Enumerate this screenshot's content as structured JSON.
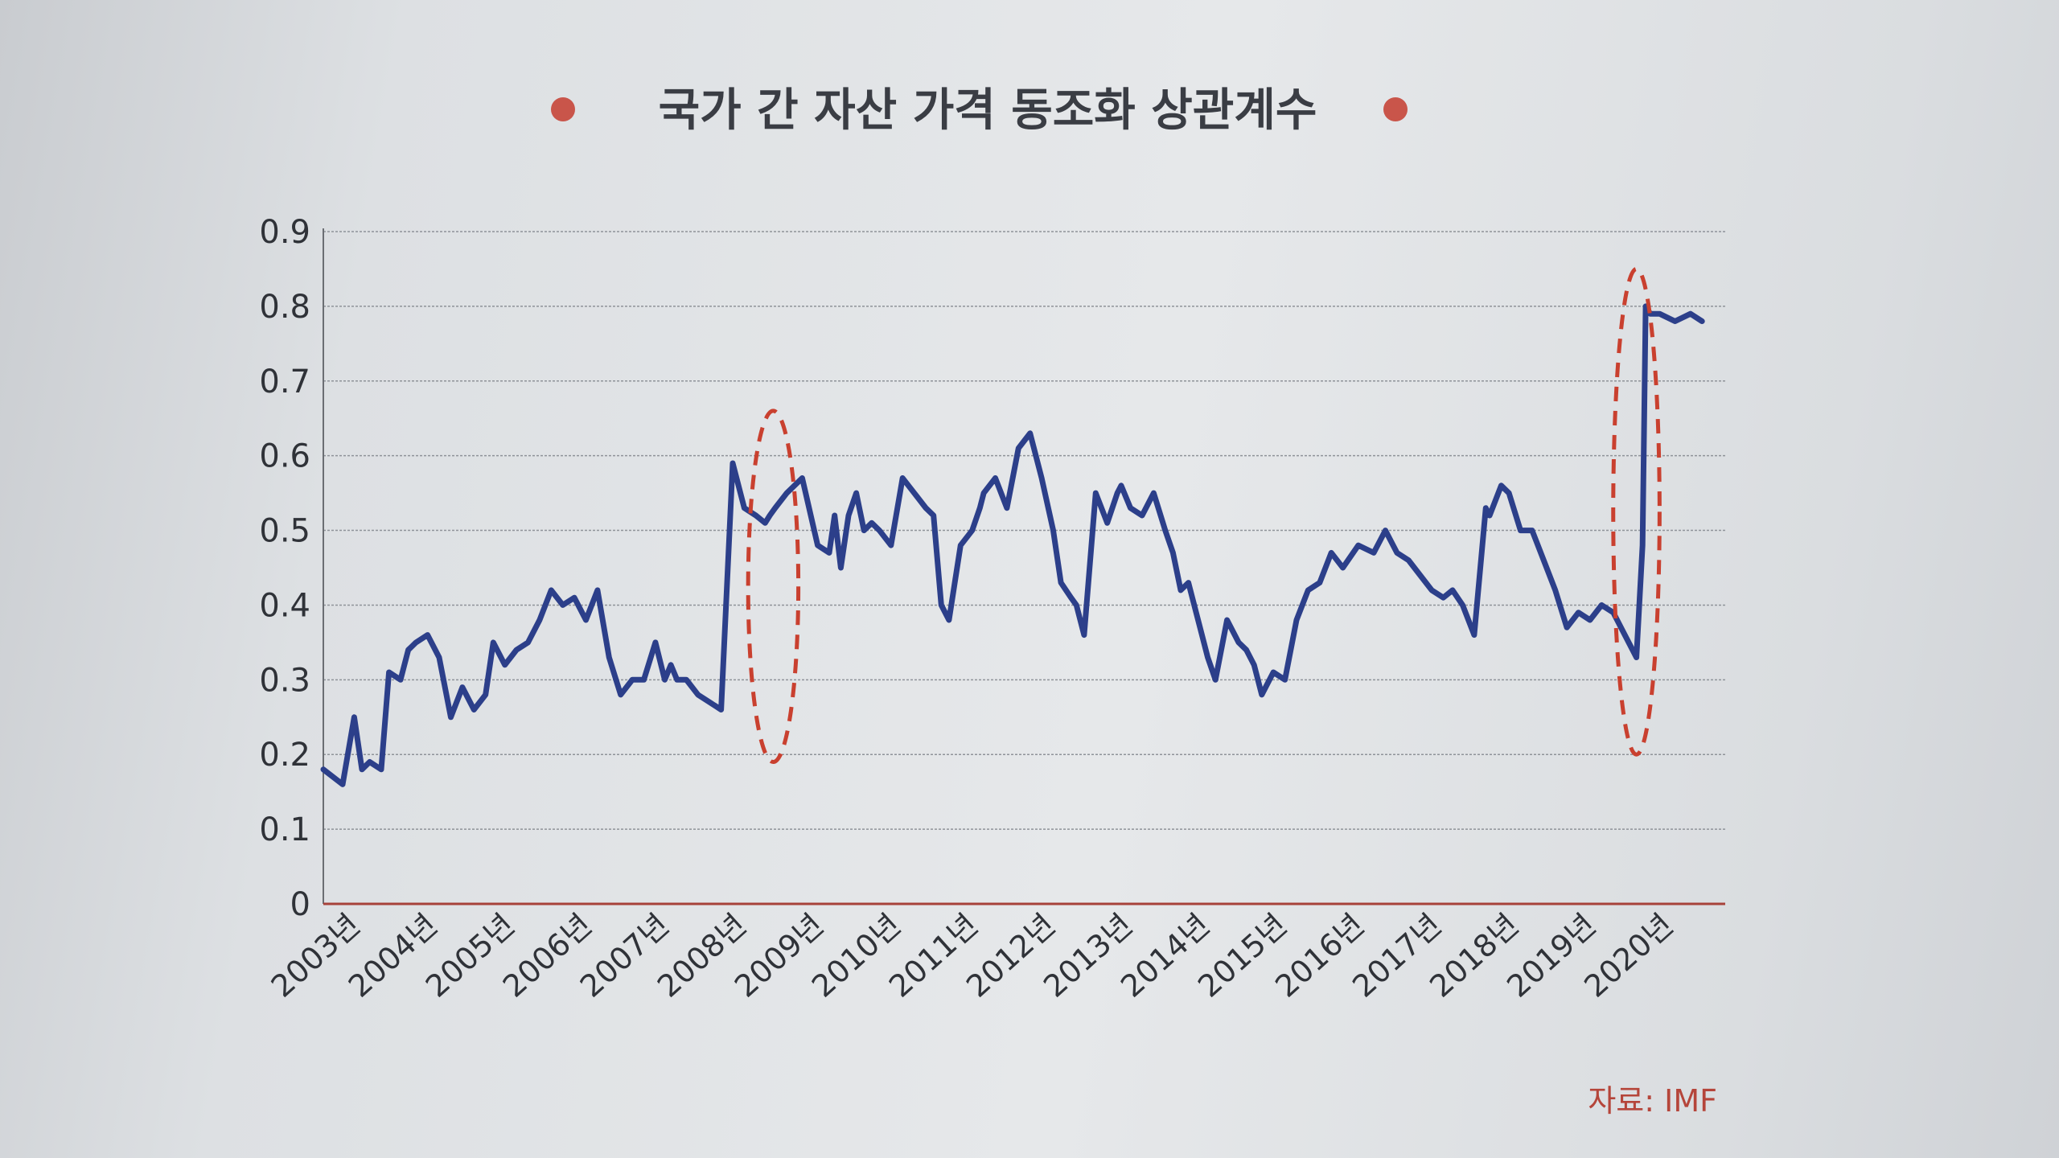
{
  "title": "국가 간 자산 가격 동조화 상관계수",
  "source": "자료: IMF",
  "colors": {
    "line": "#2c3f8a",
    "bullet": "#c9554a",
    "highlight": "#c9402f",
    "grid": "#8f9399",
    "axis": "#a7423a",
    "text": "#2f3238"
  },
  "chart_data": {
    "type": "line",
    "title": "국가 간 자산 가격 동조화 상관계수",
    "xlabel": "",
    "ylabel": "",
    "ylim": [
      0,
      0.9
    ],
    "y_ticks": [
      "0",
      "0.1",
      "0.2",
      "0.3",
      "0.4",
      "0.5",
      "0.6",
      "0.7",
      "0.8",
      "0.9"
    ],
    "x_ticks": [
      "2003년",
      "2004년",
      "2005년",
      "2006년",
      "2007년",
      "2008년",
      "2009년",
      "2010년",
      "2011년",
      "2012년",
      "2013년",
      "2014년",
      "2015년",
      "2016년",
      "2017년",
      "2018년",
      "2019년",
      "2020년"
    ],
    "grid": true,
    "x": [
      2003.0,
      2003.25,
      2003.4,
      2003.5,
      2003.6,
      2003.75,
      2003.85,
      2004.0,
      2004.1,
      2004.2,
      2004.35,
      2004.5,
      2004.65,
      2004.8,
      2004.95,
      2005.1,
      2005.2,
      2005.35,
      2005.5,
      2005.65,
      2005.8,
      2005.95,
      2006.1,
      2006.25,
      2006.4,
      2006.55,
      2006.7,
      2006.85,
      2007.0,
      2007.15,
      2007.3,
      2007.42,
      2007.5,
      2007.58,
      2007.7,
      2007.85,
      2008.0,
      2008.15,
      2008.3,
      2008.45,
      2008.6,
      2008.72,
      2008.78,
      2008.85,
      2009.0,
      2009.2,
      2009.4,
      2009.55,
      2009.62,
      2009.7,
      2009.8,
      2009.9,
      2010.0,
      2010.1,
      2010.2,
      2010.35,
      2010.5,
      2010.65,
      2010.8,
      2010.9,
      2011.0,
      2011.1,
      2011.25,
      2011.4,
      2011.5,
      2011.55,
      2011.7,
      2011.85,
      2012.0,
      2012.15,
      2012.3,
      2012.45,
      2012.55,
      2012.68,
      2012.75,
      2012.85,
      2013.0,
      2013.15,
      2013.28,
      2013.33,
      2013.45,
      2013.6,
      2013.75,
      2013.9,
      2014.0,
      2014.1,
      2014.2,
      2014.35,
      2014.45,
      2014.55,
      2014.7,
      2014.85,
      2014.95,
      2015.05,
      2015.15,
      2015.3,
      2015.45,
      2015.6,
      2015.75,
      2015.9,
      2016.05,
      2016.2,
      2016.4,
      2016.6,
      2016.75,
      2016.9,
      2017.05,
      2017.2,
      2017.35,
      2017.5,
      2017.62,
      2017.75,
      2017.9,
      2018.05,
      2018.1,
      2018.25,
      2018.35,
      2018.5,
      2018.65,
      2018.8,
      2018.95,
      2019.1,
      2019.25,
      2019.4,
      2019.55,
      2019.7,
      2019.85,
      2020.0,
      2020.08,
      2020.12,
      2020.18,
      2020.3,
      2020.5,
      2020.7,
      2020.85
    ],
    "series": [
      {
        "values": [
          0.18,
          0.16,
          0.25,
          0.18,
          0.19,
          0.18,
          0.31,
          0.3,
          0.34,
          0.35,
          0.36,
          0.33,
          0.25,
          0.29,
          0.26,
          0.28,
          0.35,
          0.32,
          0.34,
          0.35,
          0.38,
          0.42,
          0.4,
          0.41,
          0.38,
          0.42,
          0.33,
          0.28,
          0.3,
          0.3,
          0.35,
          0.3,
          0.32,
          0.3,
          0.3,
          0.28,
          0.27,
          0.26,
          0.59,
          0.53,
          0.52,
          0.51,
          0.52,
          0.53,
          0.55,
          0.57,
          0.48,
          0.47,
          0.52,
          0.45,
          0.52,
          0.55,
          0.5,
          0.51,
          0.5,
          0.48,
          0.57,
          0.55,
          0.53,
          0.52,
          0.4,
          0.38,
          0.48,
          0.5,
          0.53,
          0.55,
          0.57,
          0.53,
          0.61,
          0.63,
          0.57,
          0.5,
          0.43,
          0.41,
          0.4,
          0.36,
          0.55,
          0.51,
          0.55,
          0.56,
          0.53,
          0.52,
          0.55,
          0.5,
          0.47,
          0.42,
          0.43,
          0.37,
          0.33,
          0.3,
          0.38,
          0.35,
          0.34,
          0.32,
          0.28,
          0.31,
          0.3,
          0.38,
          0.42,
          0.43,
          0.47,
          0.45,
          0.48,
          0.47,
          0.5,
          0.47,
          0.46,
          0.44,
          0.42,
          0.41,
          0.42,
          0.4,
          0.36,
          0.53,
          0.52,
          0.56,
          0.55,
          0.5,
          0.5,
          0.46,
          0.42,
          0.37,
          0.39,
          0.38,
          0.4,
          0.39,
          0.36,
          0.33,
          0.48,
          0.8,
          0.79,
          0.79,
          0.78,
          0.79,
          0.78
        ]
      }
    ],
    "annotations": [
      {
        "type": "dashed-ellipse",
        "x_range": [
          2008.5,
          2009.15
        ],
        "y_range": [
          0.19,
          0.66
        ]
      },
      {
        "type": "dashed-ellipse",
        "x_range": [
          2019.7,
          2020.3
        ],
        "y_range": [
          0.2,
          0.85
        ]
      }
    ]
  }
}
